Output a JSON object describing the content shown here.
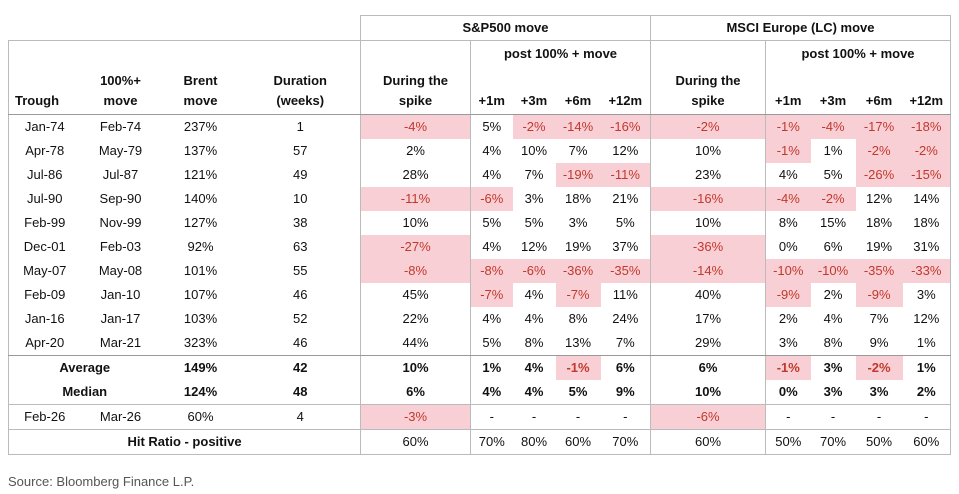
{
  "header": {
    "groups": [
      "S&P500 move",
      "MSCI Europe (LC) move"
    ],
    "columns": [
      "Trough",
      "100%+\nmove",
      "Brent\nmove",
      "Duration\n(weeks)"
    ],
    "during": "During the\nspike",
    "post": "post 100% + move",
    "horizons": [
      "+1m",
      "+3m",
      "+6m",
      "+12m"
    ]
  },
  "table": {
    "highlight_color": "#f9cfd6",
    "negative_text_color": "#c0392b",
    "rows": [
      [
        "Jan-74",
        "Feb-74",
        "237%",
        "1",
        "-4%",
        "5%",
        "-2%",
        "-14%",
        "-16%",
        "-2%",
        "-1%",
        "-4%",
        "-17%",
        "-18%"
      ],
      [
        "Apr-78",
        "May-79",
        "137%",
        "57",
        "2%",
        "4%",
        "10%",
        "7%",
        "12%",
        "10%",
        "-1%",
        "1%",
        "-2%",
        "-2%"
      ],
      [
        "Jul-86",
        "Jul-87",
        "121%",
        "49",
        "28%",
        "4%",
        "7%",
        "-19%",
        "-11%",
        "23%",
        "4%",
        "5%",
        "-26%",
        "-15%"
      ],
      [
        "Jul-90",
        "Sep-90",
        "140%",
        "10",
        "-11%",
        "-6%",
        "3%",
        "18%",
        "21%",
        "-16%",
        "-4%",
        "-2%",
        "12%",
        "14%"
      ],
      [
        "Feb-99",
        "Nov-99",
        "127%",
        "38",
        "10%",
        "5%",
        "5%",
        "3%",
        "5%",
        "10%",
        "8%",
        "15%",
        "18%",
        "18%"
      ],
      [
        "Dec-01",
        "Feb-03",
        "92%",
        "63",
        "-27%",
        "4%",
        "12%",
        "19%",
        "37%",
        "-36%",
        "0%",
        "6%",
        "19%",
        "31%"
      ],
      [
        "May-07",
        "May-08",
        "101%",
        "55",
        "-8%",
        "-8%",
        "-6%",
        "-36%",
        "-35%",
        "-14%",
        "-10%",
        "-10%",
        "-35%",
        "-33%"
      ],
      [
        "Feb-09",
        "Jan-10",
        "107%",
        "46",
        "45%",
        "-7%",
        "4%",
        "-7%",
        "11%",
        "40%",
        "-9%",
        "2%",
        "-9%",
        "3%"
      ],
      [
        "Jan-16",
        "Jan-17",
        "103%",
        "52",
        "22%",
        "4%",
        "4%",
        "8%",
        "24%",
        "17%",
        "2%",
        "4%",
        "7%",
        "12%"
      ],
      [
        "Apr-20",
        "Mar-21",
        "323%",
        "46",
        "44%",
        "5%",
        "8%",
        "13%",
        "7%",
        "29%",
        "3%",
        "8%",
        "9%",
        "1%"
      ]
    ],
    "summary_rows": [
      {
        "label": "Average",
        "values": [
          "149%",
          "42",
          "10%",
          "1%",
          "4%",
          "-1%",
          "6%",
          "6%",
          "-1%",
          "3%",
          "-2%",
          "1%"
        ]
      },
      {
        "label": "Median",
        "values": [
          "124%",
          "48",
          "6%",
          "4%",
          "4%",
          "5%",
          "9%",
          "10%",
          "0%",
          "3%",
          "3%",
          "2%"
        ]
      }
    ],
    "latest": [
      "Feb-26",
      "Mar-26",
      "60%",
      "4",
      "-3%",
      "-",
      "-",
      "-",
      "-",
      "-6%",
      "-",
      "-",
      "-",
      "-"
    ],
    "hit_ratio": {
      "label": "Hit Ratio - positive",
      "values": [
        "60%",
        "70%",
        "80%",
        "60%",
        "70%",
        "60%",
        "50%",
        "70%",
        "50%",
        "60%"
      ]
    }
  },
  "source": "Source: Bloomberg Finance L.P."
}
